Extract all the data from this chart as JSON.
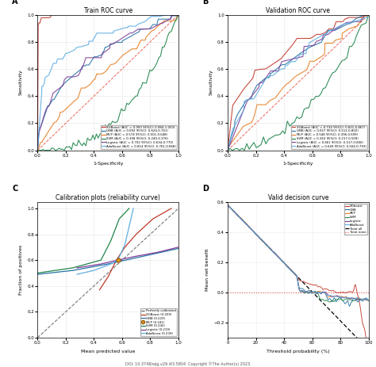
{
  "fig_width": 4.74,
  "fig_height": 4.63,
  "panel_A_title": "Train ROC curve",
  "panel_B_title": "Validation ROC curve",
  "panel_C_title": "Calibration plots (reliability curve)",
  "panel_D_title": "Valid decision curve",
  "colors": {
    "XGBoost": "#c0392b",
    "GNB": "#2471a3",
    "MLP": "#e67e22",
    "SVM": "#1e8449",
    "Logistic": "#7d3c98",
    "AdaBoost": "#5dade2"
  },
  "train_legend": [
    "XGBoost (AUC = 0.993 95%CI: 0.984-1.000)",
    "GNB (AUC = 0.692 95%CI: 0.624-0.761)",
    "MLP (AUC = 0.574 95%CI: 0.501-0.648)",
    "SVM (AUC = 0.308 95%CI: 0.240-0.376)",
    "Logistic (AUC = 0.702 95%CI: 0.634-0.770)",
    "AdaBoost (AUC = 0.814 95%CI: 0.761-0.868)"
  ],
  "val_legend": [
    "XGBoost (AUC = 0.734 95%CI: 0.601-0.867)",
    "GNB (AUC = 0.657 95%CI: 0.512-0.802)",
    "MLP (AUC = 0.548 95%CI: 0.396-0.699)",
    "SVM (AUC = 0.363 95%CI: 0.217-0.509)",
    "Logistic (AUC = 0.661 95%CI: 0.517-0.806)",
    "AdaBoost (AUC = 0.649 95%CI: 0.504-0.793)"
  ],
  "calib_legend": [
    "Perfectly calibrated",
    "XGBoost (0.209)",
    "GNB (0.229)",
    "MLP (0.241)",
    "SVM (0.242)",
    "Logistic (0.219)",
    "AdaBoost (0.239)"
  ],
  "decision_legend": [
    "XGboost",
    "GNB",
    "MLP",
    "SVM",
    "Logistic",
    "AdaBoost",
    "Treat all",
    "Treat none"
  ]
}
